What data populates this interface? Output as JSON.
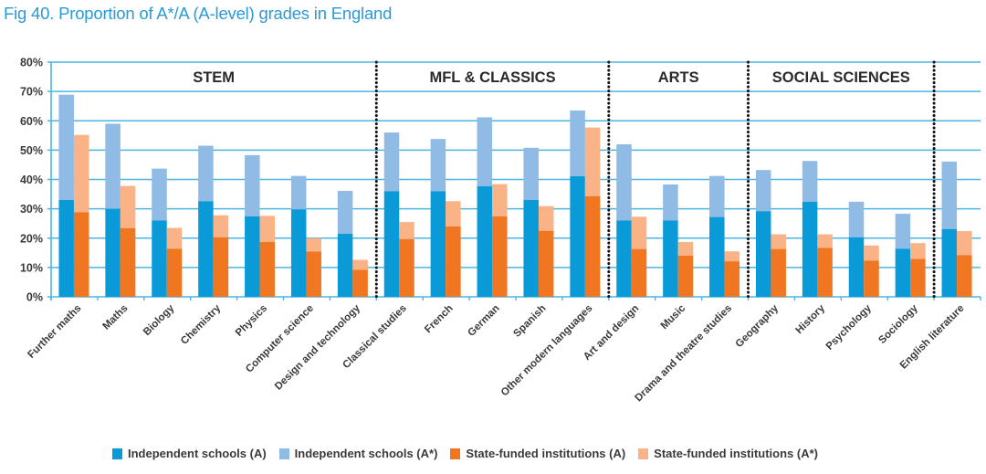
{
  "title": "Fig 40. Proportion of A*/A (A-level) grades in England",
  "colors": {
    "indep_a": "#0a9ad8",
    "indep_astar": "#8fbbe5",
    "state_a": "#f07622",
    "state_astar": "#f9b386",
    "grid": "#4cb4e1",
    "divider": "#111111",
    "text": "#3a3a3a"
  },
  "chart_data": {
    "type": "bar",
    "title": "Fig 40. Proportion of A*/A (A-level) grades in England",
    "xlabel": "",
    "ylabel": "",
    "ylim": [
      0,
      80
    ],
    "yticks": [
      0,
      10,
      20,
      30,
      40,
      50,
      60,
      70,
      80
    ],
    "ytick_labels": [
      "0%",
      "10%",
      "20%",
      "30%",
      "40%",
      "50%",
      "60%",
      "70%",
      "80%"
    ],
    "grid": true,
    "stacked_pairs": true,
    "note": "Each subject has two stacked bars: Independent schools (A portion + A* top) and State-funded institutions (A portion + A* top). Values are cumulative tops (A, then A*/A total).",
    "categories": [
      "Further maths",
      "Maths",
      "Biology",
      "Chemistry",
      "Physics",
      "Computer science",
      "Design and technology",
      "Classical studies",
      "French",
      "German",
      "Spanish",
      "Other modern languages",
      "Art and design",
      "Music",
      "Drama and theatre studies",
      "Geography",
      "History",
      "Psychology",
      "Sociology",
      "English literature"
    ],
    "groups": [
      {
        "label": "STEM",
        "start": 0,
        "end": 6
      },
      {
        "label": "MFL & CLASSICS",
        "start": 7,
        "end": 11
      },
      {
        "label": "ARTS",
        "start": 12,
        "end": 14
      },
      {
        "label": "SOCIAL SCIENCES",
        "start": 15,
        "end": 18
      },
      {
        "label": "",
        "start": 19,
        "end": 19
      }
    ],
    "series": [
      {
        "name": "Independent schools (A)",
        "key": "indep_a",
        "values": [
          33,
          30,
          26,
          32.6,
          27.4,
          29.8,
          21.5,
          36,
          36,
          37.7,
          33,
          41.1,
          26,
          26,
          27.2,
          29.2,
          32.4,
          20.3,
          16.4,
          23.1
        ]
      },
      {
        "name": "Independent schools (A*)",
        "key": "indep_astar",
        "cumulative_top": true,
        "values": [
          68.9,
          59,
          43.7,
          51.5,
          48.3,
          41.2,
          36.1,
          56,
          53.8,
          61.2,
          50.8,
          63.5,
          52,
          38.3,
          41.2,
          43.2,
          46.3,
          32.4,
          28.3,
          46.1
        ]
      },
      {
        "name": "State-funded institutions (A)",
        "key": "state_a",
        "values": [
          28.8,
          23.4,
          16.4,
          20.3,
          18.7,
          15.4,
          9.2,
          19.7,
          24,
          27.4,
          22.5,
          34.3,
          16.3,
          14,
          12.1,
          16.3,
          16.7,
          12.3,
          12.9,
          14.2
        ]
      },
      {
        "name": "State-funded institutions (A*)",
        "key": "state_astar",
        "cumulative_top": true,
        "values": [
          55.2,
          37.8,
          23.5,
          27.8,
          27.6,
          20,
          12.6,
          25.5,
          32.6,
          38.4,
          30.9,
          57.7,
          27.3,
          18.7,
          15.5,
          21.3,
          21.3,
          17.5,
          18.3,
          22.4
        ]
      }
    ],
    "legend": [
      {
        "label": "Independent schools (A)",
        "key": "indep_a"
      },
      {
        "label": "Independent schools (A*)",
        "key": "indep_astar"
      },
      {
        "label": "State-funded institutions (A)",
        "key": "state_a"
      },
      {
        "label": "State-funded institutions (A*)",
        "key": "state_astar"
      }
    ],
    "legend_position": "bottom"
  }
}
